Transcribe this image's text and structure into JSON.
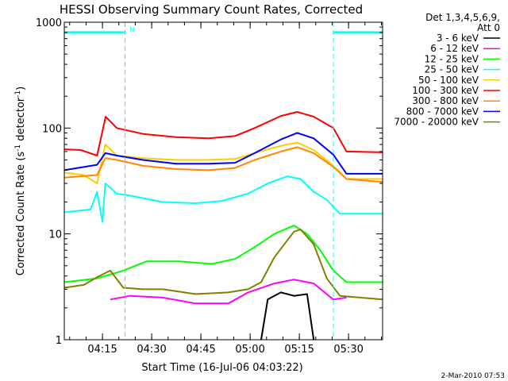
{
  "chart_data": {
    "type": "line",
    "title": "HESSI Observing Summary Count Rates, Corrected",
    "xlabel": "Start Time (16-Jul-06 04:03:22)",
    "ylabel_main": "Corrected Count Rate (s",
    "ylabel_sup1": "-1",
    "ylabel_mid": " detector",
    "ylabel_sup2": "-1",
    "ylabel_end": ")",
    "yscale": "log",
    "ylim": [
      1,
      1000
    ],
    "xlim_minutes": [
      0,
      97
    ],
    "y_tick_labels": [
      "1",
      "10",
      "100",
      "1000"
    ],
    "x_tick_labels": [
      "04:15",
      "04:30",
      "04:45",
      "05:00",
      "05:15",
      "05:30"
    ],
    "x_tick_values": [
      11.63,
      26.63,
      41.63,
      56.63,
      71.63,
      86.63
    ],
    "legend_header": [
      "Det 1,3,4,5,6,9,",
      "Att 0"
    ],
    "marker_N": "N",
    "footer": "2-Mar-2010 07:53",
    "night_intervals": [
      [
        0,
        18.5
      ],
      [
        82,
        97
      ]
    ],
    "series": [
      {
        "name": "3 - 6 keV",
        "color": "#000000",
        "points": [
          [
            60,
            1
          ],
          [
            62,
            2.4
          ],
          [
            66,
            2.8
          ],
          [
            70,
            2.6
          ],
          [
            74,
            2.7
          ],
          [
            76,
            1
          ]
        ]
      },
      {
        "name": "6 - 12 keV",
        "color": "#ff00ff",
        "points": [
          [
            14,
            2.4
          ],
          [
            20,
            2.6
          ],
          [
            30,
            2.5
          ],
          [
            40,
            2.2
          ],
          [
            50,
            2.2
          ],
          [
            56,
            2.8
          ],
          [
            64,
            3.4
          ],
          [
            70,
            3.7
          ],
          [
            76,
            3.4
          ],
          [
            82,
            2.4
          ],
          [
            86,
            2.5
          ]
        ]
      },
      {
        "name": "12 - 25 keV",
        "color": "#00ff00",
        "points": [
          [
            0,
            3.5
          ],
          [
            10,
            3.8
          ],
          [
            18,
            4.5
          ],
          [
            25,
            5.5
          ],
          [
            35,
            5.5
          ],
          [
            45,
            5.2
          ],
          [
            52,
            5.8
          ],
          [
            58,
            7.5
          ],
          [
            64,
            10
          ],
          [
            70,
            12
          ],
          [
            74,
            10
          ],
          [
            78,
            7
          ],
          [
            82,
            4.5
          ],
          [
            86,
            3.5
          ],
          [
            97,
            3.5
          ]
        ]
      },
      {
        "name": "25 - 50 keV",
        "color": "#00ffff",
        "points": [
          [
            0,
            16
          ],
          [
            8,
            17
          ],
          [
            10,
            25
          ],
          [
            11.6,
            13
          ],
          [
            12.5,
            30
          ],
          [
            16,
            24
          ],
          [
            20,
            23
          ],
          [
            30,
            20
          ],
          [
            40,
            19.5
          ],
          [
            48,
            20.5
          ],
          [
            56,
            24
          ],
          [
            62,
            30
          ],
          [
            68,
            35
          ],
          [
            72,
            33
          ],
          [
            76,
            25
          ],
          [
            80,
            21
          ],
          [
            84,
            15.5
          ],
          [
            97,
            15.5
          ]
        ]
      },
      {
        "name": "50 - 100 keV",
        "color": "#ffcc00",
        "points": [
          [
            0,
            38
          ],
          [
            6,
            36
          ],
          [
            10,
            30
          ],
          [
            12.5,
            70
          ],
          [
            16,
            55
          ],
          [
            24,
            52
          ],
          [
            34,
            50
          ],
          [
            44,
            50
          ],
          [
            52,
            51
          ],
          [
            58,
            58
          ],
          [
            66,
            68
          ],
          [
            71,
            73
          ],
          [
            76,
            62
          ],
          [
            82,
            44
          ],
          [
            86,
            33
          ],
          [
            97,
            33
          ]
        ]
      },
      {
        "name": "100 - 300 keV",
        "color": "#ff0000",
        "points": [
          [
            0,
            63
          ],
          [
            5,
            62
          ],
          [
            10,
            55
          ],
          [
            12.6,
            128
          ],
          [
            16,
            100
          ],
          [
            24,
            88
          ],
          [
            34,
            82
          ],
          [
            44,
            80
          ],
          [
            52,
            84
          ],
          [
            58,
            100
          ],
          [
            66,
            130
          ],
          [
            71,
            142
          ],
          [
            76,
            128
          ],
          [
            82,
            100
          ],
          [
            86,
            60
          ],
          [
            97,
            59
          ]
        ]
      },
      {
        "name": "300 - 800 keV",
        "color": "#ff8800",
        "points": [
          [
            0,
            34
          ],
          [
            10,
            36
          ],
          [
            12.5,
            52
          ],
          [
            16,
            50
          ],
          [
            24,
            44
          ],
          [
            34,
            41
          ],
          [
            44,
            40
          ],
          [
            52,
            42
          ],
          [
            58,
            50
          ],
          [
            66,
            60
          ],
          [
            71,
            66
          ],
          [
            76,
            58
          ],
          [
            82,
            43
          ],
          [
            86,
            33
          ],
          [
            97,
            31
          ]
        ]
      },
      {
        "name": "7000 - 20000 keV",
        "color": "#808000",
        "points": [
          [
            0,
            3.1
          ],
          [
            6,
            3.3
          ],
          [
            10,
            3.9
          ],
          [
            14,
            4.5
          ],
          [
            18,
            3.1
          ],
          [
            24,
            3.0
          ],
          [
            30,
            3.0
          ],
          [
            40,
            2.7
          ],
          [
            50,
            2.8
          ],
          [
            56,
            3.0
          ],
          [
            60,
            3.5
          ],
          [
            64,
            6
          ],
          [
            70,
            10.5
          ],
          [
            72,
            11
          ],
          [
            76,
            8
          ],
          [
            80,
            3.8
          ],
          [
            84,
            2.6
          ],
          [
            97,
            2.4
          ]
        ]
      },
      {
        "name": "800 - 7000 keV",
        "color": "#0000ff",
        "points": [
          [
            0,
            40
          ],
          [
            10,
            45
          ],
          [
            12.5,
            58
          ],
          [
            16,
            55
          ],
          [
            24,
            50
          ],
          [
            34,
            46
          ],
          [
            44,
            46
          ],
          [
            52,
            47
          ],
          [
            58,
            58
          ],
          [
            66,
            78
          ],
          [
            71,
            90
          ],
          [
            76,
            80
          ],
          [
            82,
            56
          ],
          [
            86,
            37
          ],
          [
            97,
            37
          ]
        ]
      }
    ]
  }
}
